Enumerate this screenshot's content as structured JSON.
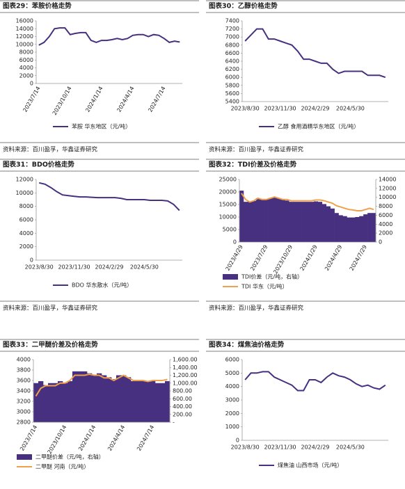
{
  "chart_data": [
    {
      "type": "line",
      "title": "图表29：苯胺价格走势",
      "source": "资料来源：百川盈孚，华鑫证券研究",
      "categories": [
        "2023/7/14",
        null,
        null,
        null,
        null,
        null,
        "2023/10/14",
        null,
        null,
        null,
        null,
        null,
        "2024/1/14",
        null,
        null,
        null,
        null,
        null,
        "2024/4/14",
        null,
        null,
        null,
        null,
        null,
        "2024/7/14",
        null,
        null,
        null
      ],
      "x_label_rotate": true,
      "series": [
        {
          "name": "苯胺 华东地区（元/吨）",
          "color": "#46307f",
          "values": [
            9800,
            10500,
            12000,
            14000,
            14200,
            14200,
            12500,
            12800,
            13000,
            13000,
            11000,
            10500,
            11000,
            11000,
            11200,
            11500,
            11200,
            11500,
            12300,
            12500,
            12500,
            12000,
            12500,
            12300,
            11500,
            10500,
            10800,
            10600
          ]
        }
      ],
      "ylim": [
        0,
        16000
      ],
      "yticks": [
        0,
        2000,
        4000,
        6000,
        8000,
        10000,
        12000,
        14000,
        16000
      ]
    },
    {
      "type": "line",
      "title": "图表30：乙醇价格走势",
      "source": "资料来源：百川盈孚，华鑫证券研究",
      "categories": [
        "2023/8/30",
        null,
        null,
        null,
        null,
        null,
        "2023/11/30",
        null,
        null,
        null,
        null,
        null,
        "2024/2/29",
        null,
        null,
        null,
        null,
        null,
        "2024/5/30",
        null,
        null,
        null,
        null,
        null,
        null
      ],
      "x_label_rotate": false,
      "series": [
        {
          "name": "乙醇 食用酒精华东地区（元/吨）",
          "color": "#46307f",
          "values": [
            6900,
            7050,
            7200,
            7200,
            6950,
            6950,
            6900,
            6850,
            6800,
            6650,
            6450,
            6450,
            6400,
            6350,
            6350,
            6200,
            6100,
            6150,
            6150,
            6150,
            6150,
            6050,
            6050,
            6050,
            6000
          ]
        }
      ],
      "ylim": [
        5400,
        7400
      ],
      "yticks": [
        5400,
        5600,
        5800,
        6000,
        6200,
        6400,
        6600,
        6800,
        7000,
        7200,
        7400
      ]
    },
    {
      "type": "line",
      "title": "图表31：BDO价格走势",
      "source": "资料来源：百川盈孚，华鑫证券研究",
      "categories": [
        "2023/8/30",
        null,
        null,
        null,
        null,
        null,
        "2023/11/30",
        null,
        null,
        null,
        null,
        null,
        "2024/2/29",
        null,
        null,
        null,
        null,
        null,
        "2024/5/30",
        null,
        null,
        null,
        null,
        null,
        null
      ],
      "x_label_rotate": false,
      "series": [
        {
          "name": "BDO 华东散水（元/吨）",
          "color": "#46307f",
          "values": [
            11500,
            11300,
            10800,
            10200,
            9700,
            9600,
            9500,
            9400,
            9400,
            9350,
            9300,
            9300,
            9300,
            9300,
            9200,
            9000,
            9000,
            9000,
            9000,
            8900,
            8900,
            8900,
            8800,
            8300,
            7400
          ]
        }
      ],
      "ylim": [
        0,
        12000
      ],
      "yticks": [
        0,
        2000,
        4000,
        6000,
        8000,
        10000,
        12000
      ]
    },
    {
      "type": "combo",
      "title": "图表32：TDI价差及价格走势",
      "source": "资料来源：百川盈孚，华鑫证券研究",
      "categories": [
        "2023/4/29",
        null,
        null,
        null,
        null,
        null,
        "2023/7/29",
        null,
        null,
        null,
        null,
        null,
        "2023/10/29",
        null,
        null,
        null,
        null,
        null,
        "2024/1/29",
        null,
        null,
        null,
        null,
        null,
        "2024/4/29",
        null,
        null,
        null,
        null,
        null,
        "2024/7/29",
        null,
        null
      ],
      "x_label_rotate": true,
      "series": [
        {
          "name": "TDI价差（元/吨，右轴）",
          "type": "bar",
          "axis": "y2",
          "color": "#46307f",
          "values": [
            11500,
            9000,
            9000,
            9200,
            9800,
            9500,
            9500,
            9800,
            10000,
            9800,
            9500,
            9300,
            9000,
            9000,
            9000,
            9000,
            9000,
            9000,
            9100,
            9000,
            8500,
            8000,
            7500,
            6500,
            6000,
            5800,
            5500,
            5500,
            5600,
            5800,
            6200,
            6500,
            6500
          ]
        },
        {
          "name": "TDI 华东（元/吨）",
          "type": "line",
          "color": "#f0a04b",
          "values": [
            19500,
            17000,
            16000,
            16500,
            17500,
            17000,
            17000,
            17500,
            18000,
            17500,
            17000,
            17000,
            16500,
            16500,
            16500,
            16500,
            16500,
            16500,
            16800,
            16800,
            16500,
            16000,
            15500,
            14500,
            14000,
            13500,
            13000,
            12800,
            12500,
            12500,
            13000,
            13500,
            13000
          ]
        }
      ],
      "ylim": [
        0,
        25000
      ],
      "yticks": [
        0,
        5000,
        10000,
        15000,
        20000,
        25000
      ],
      "y2lim": [
        0,
        14000
      ],
      "y2ticks": [
        0,
        2000,
        4000,
        6000,
        8000,
        10000,
        12000,
        14000
      ]
    },
    {
      "type": "combo",
      "title": "图表33：二甲醚价差及价格走势",
      "categories": [
        "2023/7/14",
        null,
        null,
        null,
        null,
        null,
        "2023/10/14",
        null,
        null,
        null,
        null,
        null,
        "2024/1/14",
        null,
        null,
        null,
        null,
        null,
        "2024/4/14",
        null,
        null,
        null,
        null,
        null,
        "2024/7/14",
        null,
        null,
        null
      ],
      "x_label_rotate": true,
      "series": [
        {
          "name": "二甲醚价差（元/吨，右轴）",
          "type": "bar",
          "axis": "y2",
          "color": "#46307f",
          "values": [
            1000,
            1050,
            950,
            1000,
            1000,
            1050,
            1000,
            1050,
            1300,
            1300,
            1300,
            1250,
            1200,
            1250,
            1200,
            1150,
            1100,
            1200,
            1200,
            1150,
            1050,
            1050,
            1050,
            1050,
            1050,
            1000,
            1000,
            1050
          ]
        },
        {
          "name": "二甲醚 河南（元/吨）",
          "type": "line",
          "color": "#f0a04b",
          "values": [
            3300,
            3450,
            3500,
            3500,
            3500,
            3550,
            3550,
            3600,
            3700,
            3700,
            3700,
            3720,
            3700,
            3700,
            3650,
            3650,
            3600,
            3650,
            3700,
            3650,
            3600,
            3600,
            3600,
            3580,
            3600,
            3600,
            3600,
            3620
          ]
        }
      ],
      "ylim": [
        2800,
        4000
      ],
      "yticks": [
        2800,
        3000,
        3200,
        3400,
        3600,
        3800,
        4000
      ],
      "y2lim": [
        0,
        1600
      ],
      "y2ticks": [
        {
          "value": 0,
          "label": "-"
        },
        {
          "value": 200,
          "label": "200.00"
        },
        {
          "value": 400,
          "label": "400.00"
        },
        {
          "value": 600,
          "label": "600.00"
        },
        {
          "value": 800,
          "label": "800.00"
        },
        {
          "value": 1000,
          "label": "1,000.00"
        },
        {
          "value": 1200,
          "label": "1,200.00"
        },
        {
          "value": 1400,
          "label": "1,400.00"
        },
        {
          "value": 1600,
          "label": "1,600.00"
        }
      ]
    },
    {
      "type": "line",
      "title": "图表34：煤焦油价格走势",
      "categories": [
        "2023/8/30",
        null,
        null,
        null,
        null,
        null,
        "2023/11/30",
        null,
        null,
        null,
        null,
        null,
        "2024/2/29",
        null,
        null,
        null,
        null,
        null,
        "2024/5/30",
        null,
        null,
        null,
        null,
        null,
        null
      ],
      "x_label_rotate": false,
      "series": [
        {
          "name": "煤焦油 山西市场（元/吨）",
          "color": "#46307f",
          "values": [
            4500,
            5000,
            5000,
            5100,
            5100,
            4700,
            4500,
            4300,
            4100,
            3700,
            3700,
            4500,
            4500,
            4300,
            4700,
            5000,
            4800,
            4700,
            4500,
            4200,
            4000,
            4100,
            3900,
            3800,
            4100
          ]
        }
      ],
      "ylim": [
        0,
        6000
      ],
      "yticks": [
        0,
        1000,
        2000,
        3000,
        4000,
        5000,
        6000
      ]
    }
  ]
}
